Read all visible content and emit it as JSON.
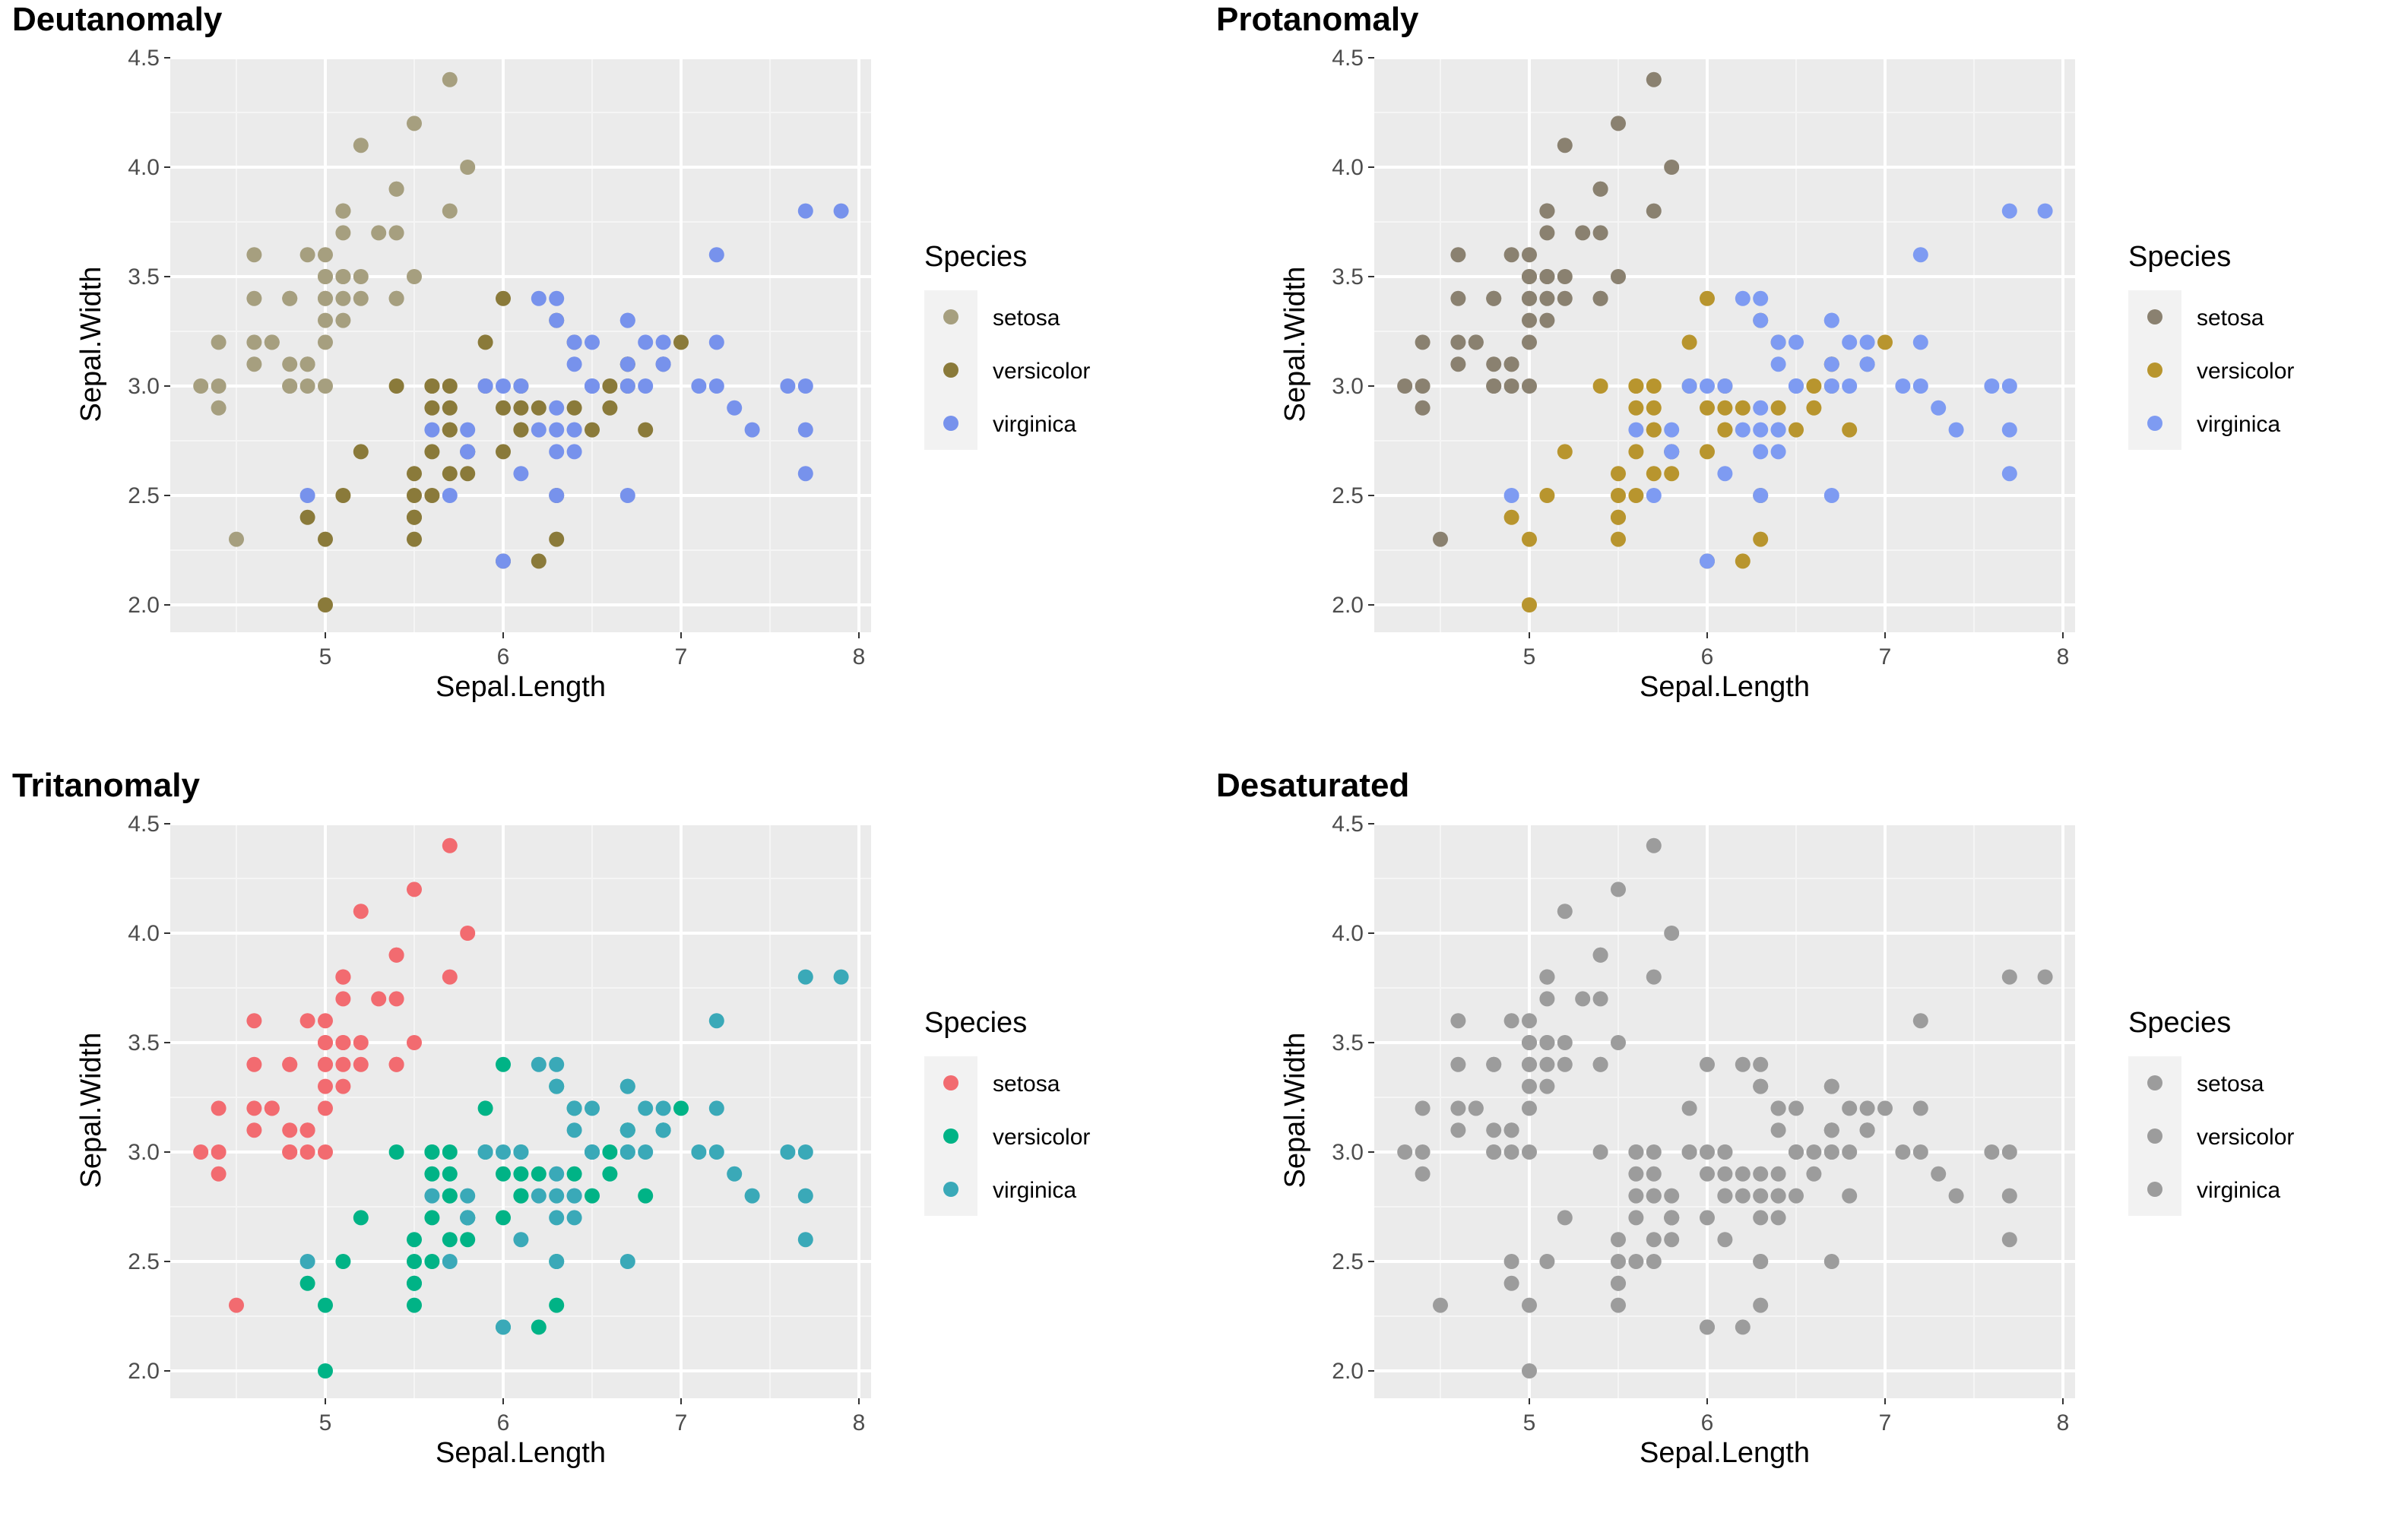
{
  "chart_data": [
    {
      "type": "scatter",
      "title": "Deutanomaly",
      "xlabel": "Sepal.Length",
      "ylabel": "Sepal.Width",
      "xlim": [
        4.3,
        7.9
      ],
      "ylim": [
        2.0,
        4.4
      ],
      "x_ticks": [
        "5",
        "6",
        "7",
        "8"
      ],
      "y_ticks": [
        "2.0",
        "2.5",
        "3.0",
        "3.5",
        "4.0",
        "4.5"
      ],
      "grid": true,
      "legend_position": "right",
      "legend_title": "Species",
      "series_colors": [
        "#A69F7F",
        "#8A7A3A",
        "#7792EC"
      ]
    },
    {
      "type": "scatter",
      "title": "Protanomaly",
      "xlabel": "Sepal.Length",
      "ylabel": "Sepal.Width",
      "xlim": [
        4.3,
        7.9
      ],
      "ylim": [
        2.0,
        4.4
      ],
      "x_ticks": [
        "5",
        "6",
        "7",
        "8"
      ],
      "y_ticks": [
        "2.0",
        "2.5",
        "3.0",
        "3.5",
        "4.0",
        "4.5"
      ],
      "grid": true,
      "legend_position": "right",
      "legend_title": "Species",
      "series_colors": [
        "#8A8170",
        "#B8952E",
        "#7E9BF2"
      ]
    },
    {
      "type": "scatter",
      "title": "Tritanomaly",
      "xlabel": "Sepal.Length",
      "ylabel": "Sepal.Width",
      "xlim": [
        4.3,
        7.9
      ],
      "ylim": [
        2.0,
        4.4
      ],
      "x_ticks": [
        "5",
        "6",
        "7",
        "8"
      ],
      "y_ticks": [
        "2.0",
        "2.5",
        "3.0",
        "3.5",
        "4.0",
        "4.5"
      ],
      "grid": true,
      "legend_position": "right",
      "legend_title": "Species",
      "series_colors": [
        "#F26B70",
        "#00B386",
        "#3AA9B8"
      ]
    },
    {
      "type": "scatter",
      "title": "Desaturated",
      "xlabel": "Sepal.Length",
      "ylabel": "Sepal.Width",
      "xlim": [
        4.3,
        7.9
      ],
      "ylim": [
        2.0,
        4.4
      ],
      "x_ticks": [
        "5",
        "6",
        "7",
        "8"
      ],
      "y_ticks": [
        "2.0",
        "2.5",
        "3.0",
        "3.5",
        "4.0",
        "4.5"
      ],
      "grid": true,
      "legend_position": "right",
      "legend_title": "Species",
      "series_colors": [
        "#9C9C9C",
        "#9C9C9C",
        "#9C9C9C"
      ]
    }
  ],
  "species": [
    "setosa",
    "versicolor",
    "virginica"
  ],
  "iris_points": {
    "setosa": [
      [
        5.1,
        3.5
      ],
      [
        4.9,
        3.0
      ],
      [
        4.7,
        3.2
      ],
      [
        4.6,
        3.1
      ],
      [
        5.0,
        3.6
      ],
      [
        5.4,
        3.9
      ],
      [
        4.6,
        3.4
      ],
      [
        5.0,
        3.4
      ],
      [
        4.4,
        2.9
      ],
      [
        4.9,
        3.1
      ],
      [
        5.4,
        3.7
      ],
      [
        4.8,
        3.4
      ],
      [
        4.8,
        3.0
      ],
      [
        4.3,
        3.0
      ],
      [
        5.8,
        4.0
      ],
      [
        5.7,
        4.4
      ],
      [
        5.4,
        3.9
      ],
      [
        5.1,
        3.5
      ],
      [
        5.7,
        3.8
      ],
      [
        5.1,
        3.8
      ],
      [
        5.4,
        3.4
      ],
      [
        5.1,
        3.7
      ],
      [
        4.6,
        3.6
      ],
      [
        5.1,
        3.3
      ],
      [
        4.8,
        3.4
      ],
      [
        5.0,
        3.0
      ],
      [
        5.0,
        3.4
      ],
      [
        5.2,
        3.5
      ],
      [
        5.2,
        3.4
      ],
      [
        4.7,
        3.2
      ],
      [
        4.8,
        3.1
      ],
      [
        5.4,
        3.4
      ],
      [
        5.2,
        4.1
      ],
      [
        5.5,
        4.2
      ],
      [
        4.9,
        3.1
      ],
      [
        5.0,
        3.2
      ],
      [
        5.5,
        3.5
      ],
      [
        4.9,
        3.6
      ],
      [
        4.4,
        3.0
      ],
      [
        5.1,
        3.4
      ],
      [
        5.0,
        3.5
      ],
      [
        4.5,
        2.3
      ],
      [
        4.4,
        3.2
      ],
      [
        5.0,
        3.5
      ],
      [
        5.1,
        3.8
      ],
      [
        4.8,
        3.0
      ],
      [
        5.1,
        3.8
      ],
      [
        4.6,
        3.2
      ],
      [
        5.3,
        3.7
      ],
      [
        5.0,
        3.3
      ]
    ],
    "versicolor": [
      [
        7.0,
        3.2
      ],
      [
        6.4,
        3.2
      ],
      [
        6.9,
        3.1
      ],
      [
        5.5,
        2.3
      ],
      [
        6.5,
        2.8
      ],
      [
        5.7,
        2.8
      ],
      [
        6.3,
        3.3
      ],
      [
        4.9,
        2.4
      ],
      [
        6.6,
        2.9
      ],
      [
        5.2,
        2.7
      ],
      [
        5.0,
        2.0
      ],
      [
        5.9,
        3.0
      ],
      [
        6.0,
        2.2
      ],
      [
        6.1,
        2.9
      ],
      [
        5.6,
        2.9
      ],
      [
        6.7,
        3.1
      ],
      [
        5.6,
        3.0
      ],
      [
        5.8,
        2.7
      ],
      [
        6.2,
        2.2
      ],
      [
        5.6,
        2.5
      ],
      [
        5.9,
        3.2
      ],
      [
        6.1,
        2.8
      ],
      [
        6.3,
        2.5
      ],
      [
        6.1,
        2.8
      ],
      [
        6.4,
        2.9
      ],
      [
        6.6,
        3.0
      ],
      [
        6.8,
        2.8
      ],
      [
        6.7,
        3.0
      ],
      [
        6.0,
        2.9
      ],
      [
        5.7,
        2.6
      ],
      [
        5.5,
        2.4
      ],
      [
        5.5,
        2.4
      ],
      [
        5.8,
        2.7
      ],
      [
        6.0,
        2.7
      ],
      [
        5.4,
        3.0
      ],
      [
        6.0,
        3.4
      ],
      [
        6.7,
        3.1
      ],
      [
        6.3,
        2.3
      ],
      [
        5.6,
        3.0
      ],
      [
        5.5,
        2.5
      ],
      [
        5.5,
        2.6
      ],
      [
        6.1,
        3.0
      ],
      [
        5.8,
        2.6
      ],
      [
        5.0,
        2.3
      ],
      [
        5.6,
        2.7
      ],
      [
        5.7,
        3.0
      ],
      [
        5.7,
        2.9
      ],
      [
        6.2,
        2.9
      ],
      [
        5.1,
        2.5
      ],
      [
        5.7,
        2.8
      ]
    ],
    "virginica": [
      [
        6.3,
        3.3
      ],
      [
        5.8,
        2.7
      ],
      [
        7.1,
        3.0
      ],
      [
        6.3,
        2.9
      ],
      [
        6.5,
        3.0
      ],
      [
        7.6,
        3.0
      ],
      [
        4.9,
        2.5
      ],
      [
        7.3,
        2.9
      ],
      [
        6.7,
        2.5
      ],
      [
        7.2,
        3.6
      ],
      [
        6.5,
        3.2
      ],
      [
        6.4,
        2.7
      ],
      [
        6.8,
        3.0
      ],
      [
        5.7,
        2.5
      ],
      [
        5.8,
        2.8
      ],
      [
        6.4,
        3.2
      ],
      [
        6.5,
        3.0
      ],
      [
        7.7,
        3.8
      ],
      [
        7.7,
        2.6
      ],
      [
        6.0,
        2.2
      ],
      [
        6.9,
        3.2
      ],
      [
        5.6,
        2.8
      ],
      [
        7.7,
        2.8
      ],
      [
        6.3,
        2.7
      ],
      [
        6.7,
        3.3
      ],
      [
        7.2,
        3.2
      ],
      [
        6.2,
        2.8
      ],
      [
        6.1,
        3.0
      ],
      [
        6.4,
        2.8
      ],
      [
        7.2,
        3.0
      ],
      [
        7.4,
        2.8
      ],
      [
        7.9,
        3.8
      ],
      [
        6.4,
        2.8
      ],
      [
        6.3,
        2.8
      ],
      [
        6.1,
        2.6
      ],
      [
        7.7,
        3.0
      ],
      [
        6.3,
        3.4
      ],
      [
        6.4,
        3.1
      ],
      [
        6.0,
        3.0
      ],
      [
        6.9,
        3.1
      ],
      [
        6.7,
        3.1
      ],
      [
        6.9,
        3.1
      ],
      [
        5.8,
        2.7
      ],
      [
        6.8,
        3.2
      ],
      [
        6.7,
        3.3
      ],
      [
        6.7,
        3.0
      ],
      [
        6.3,
        2.5
      ],
      [
        6.5,
        3.0
      ],
      [
        6.2,
        3.4
      ],
      [
        5.9,
        3.0
      ]
    ]
  }
}
